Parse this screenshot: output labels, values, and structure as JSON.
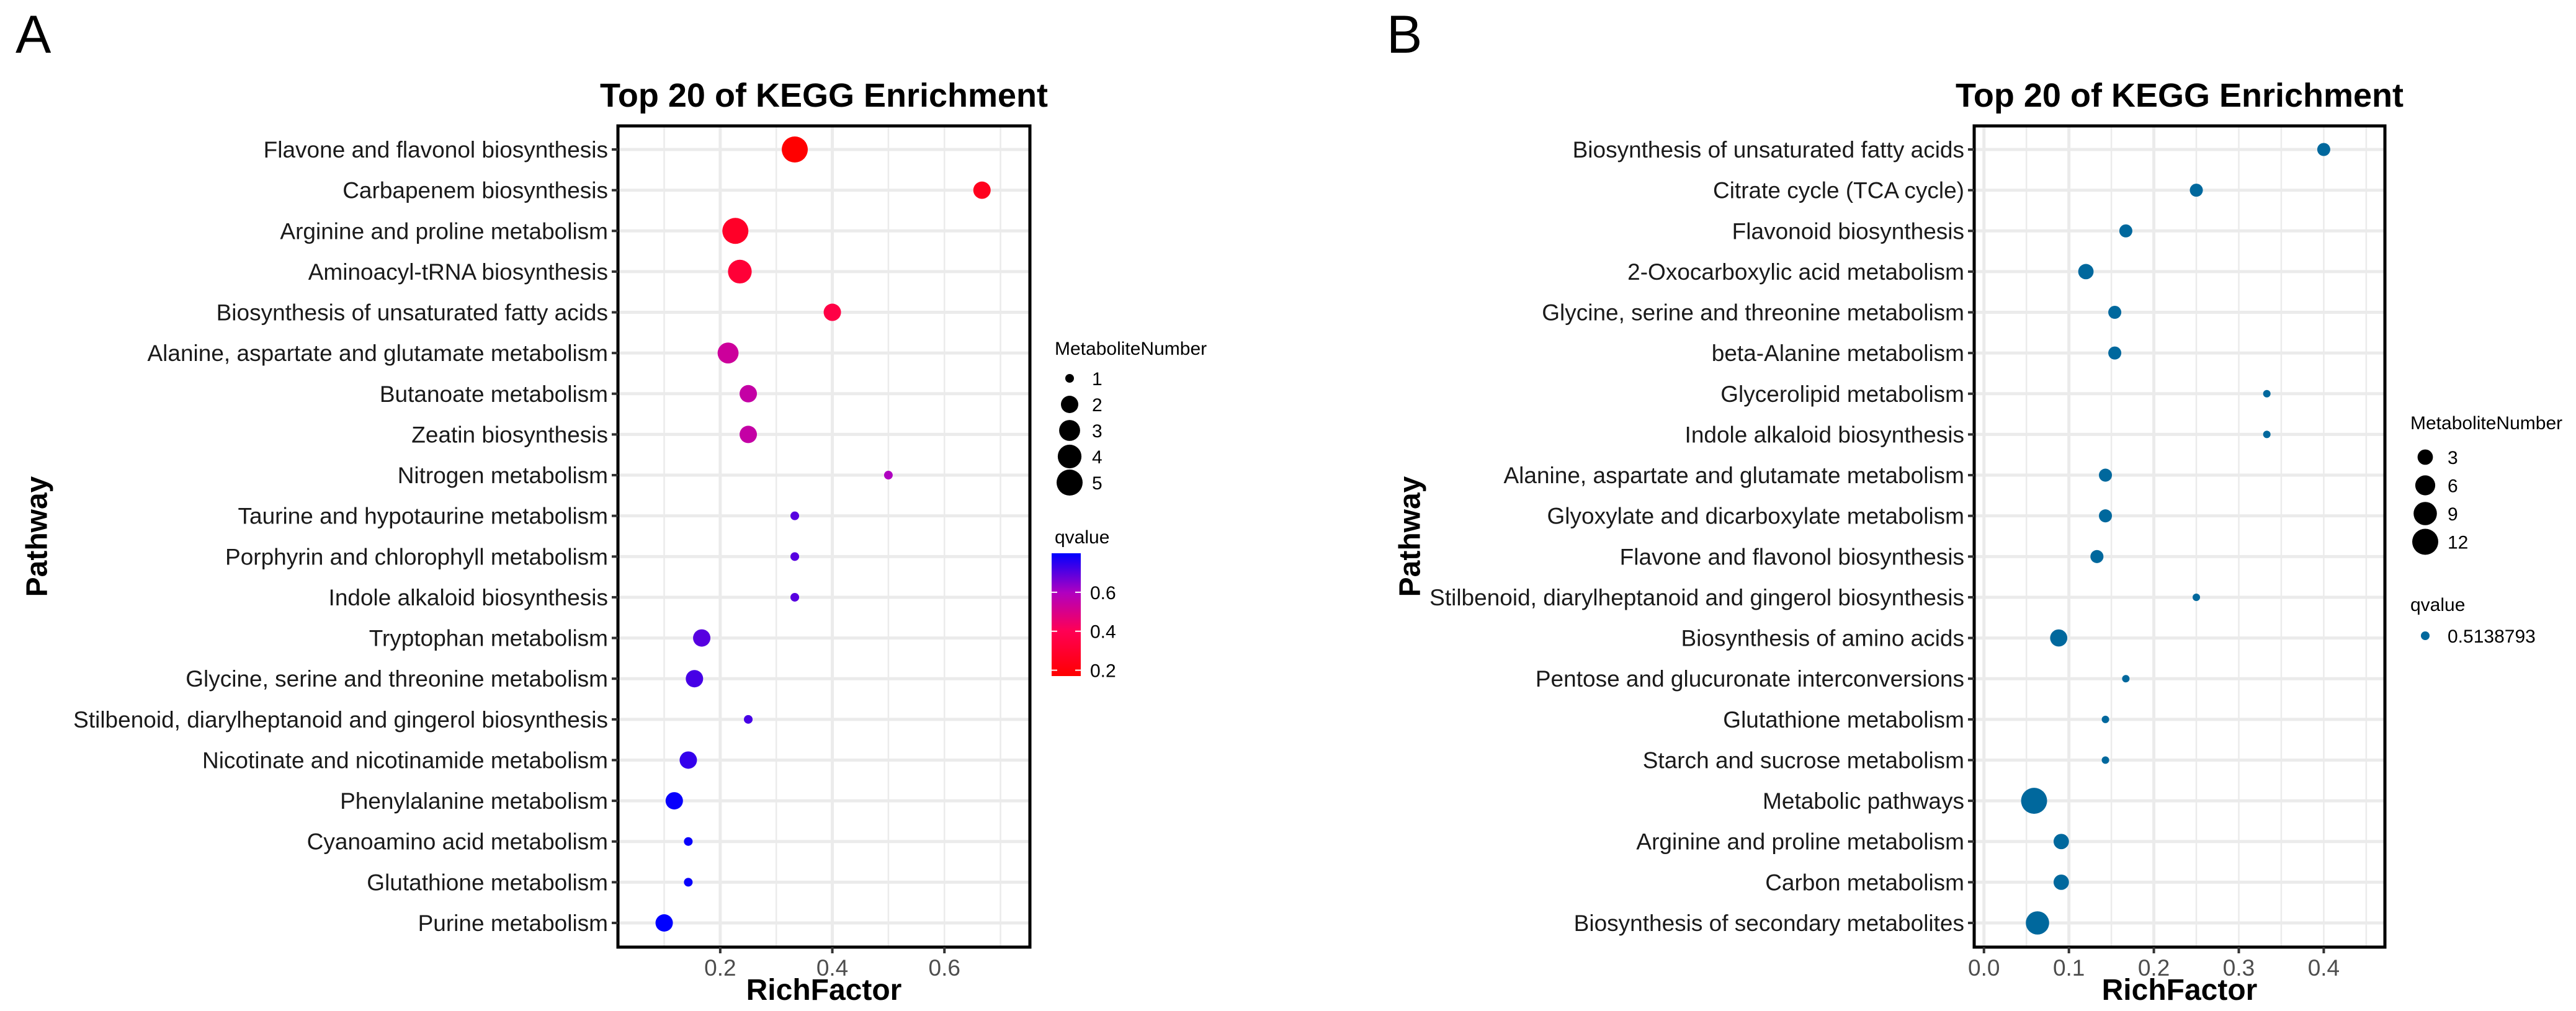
{
  "chart_data": [
    {
      "panel_label": "A",
      "type": "scatter",
      "title": "Top 20 of KEGG Enrichment",
      "xlabel": "RichFactor",
      "ylabel": "Pathway",
      "xlim": [
        0.0175,
        0.7525
      ],
      "xticks": [
        0.2,
        0.4,
        0.6
      ],
      "grid": true,
      "size_legend": {
        "title": "MetaboliteNumber",
        "entries": [
          1,
          2,
          3,
          4,
          5
        ]
      },
      "color_legend": {
        "title": "qvalue",
        "type": "gradient",
        "range": [
          0.17,
          0.8
        ],
        "ticks": [
          0.2,
          0.4,
          0.6
        ],
        "low_color": "#FF0000",
        "high_color": "#0000FF"
      },
      "legend_position": "right",
      "points": [
        {
          "pathway": "Flavone and flavonol biosynthesis",
          "richfactor": 0.333,
          "number": 5,
          "qvalue": 0.17
        },
        {
          "pathway": "Carbapenem biosynthesis",
          "richfactor": 0.667,
          "number": 2,
          "qvalue": 0.25
        },
        {
          "pathway": "Arginine and proline metabolism",
          "richfactor": 0.227,
          "number": 5,
          "qvalue": 0.28
        },
        {
          "pathway": "Aminoacyl-tRNA biosynthesis",
          "richfactor": 0.235,
          "number": 4,
          "qvalue": 0.32
        },
        {
          "pathway": "Biosynthesis of unsaturated fatty acids",
          "richfactor": 0.4,
          "number": 2,
          "qvalue": 0.36
        },
        {
          "pathway": "Alanine, aspartate and glutamate metabolism",
          "richfactor": 0.214,
          "number": 3,
          "qvalue": 0.53
        },
        {
          "pathway": "Butanoate metabolism",
          "richfactor": 0.25,
          "number": 2,
          "qvalue": 0.55
        },
        {
          "pathway": "Zeatin biosynthesis",
          "richfactor": 0.25,
          "number": 2,
          "qvalue": 0.55
        },
        {
          "pathway": "Nitrogen metabolism",
          "richfactor": 0.5,
          "number": 1,
          "qvalue": 0.6
        },
        {
          "pathway": "Taurine and hypotaurine metabolism",
          "richfactor": 0.333,
          "number": 1,
          "qvalue": 0.7
        },
        {
          "pathway": "Porphyrin and chlorophyll metabolism",
          "richfactor": 0.333,
          "number": 1,
          "qvalue": 0.7
        },
        {
          "pathway": "Indole alkaloid biosynthesis",
          "richfactor": 0.333,
          "number": 1,
          "qvalue": 0.7
        },
        {
          "pathway": "Tryptophan metabolism",
          "richfactor": 0.167,
          "number": 2,
          "qvalue": 0.7
        },
        {
          "pathway": "Glycine, serine and threonine metabolism",
          "richfactor": 0.154,
          "number": 2,
          "qvalue": 0.72
        },
        {
          "pathway": "Stilbenoid, diarylheptanoid and gingerol biosynthesis",
          "richfactor": 0.25,
          "number": 1,
          "qvalue": 0.72
        },
        {
          "pathway": "Nicotinate and nicotinamide metabolism",
          "richfactor": 0.143,
          "number": 2,
          "qvalue": 0.74
        },
        {
          "pathway": "Phenylalanine metabolism",
          "richfactor": 0.118,
          "number": 2,
          "qvalue": 0.79
        },
        {
          "pathway": "Cyanoamino acid metabolism",
          "richfactor": 0.143,
          "number": 1,
          "qvalue": 0.79
        },
        {
          "pathway": "Glutathione metabolism",
          "richfactor": 0.143,
          "number": 1,
          "qvalue": 0.79
        },
        {
          "pathway": "Purine metabolism",
          "richfactor": 0.1,
          "number": 2,
          "qvalue": 0.8
        }
      ]
    },
    {
      "panel_label": "B",
      "type": "scatter",
      "title": "Top 20 of KEGG Enrichment",
      "xlabel": "RichFactor",
      "ylabel": "Pathway",
      "xlim": [
        -0.0115,
        0.472
      ],
      "xticks": [
        0.0,
        0.1,
        0.2,
        0.3,
        0.4
      ],
      "grid": true,
      "size_legend": {
        "title": "MetaboliteNumber",
        "entries": [
          3,
          6,
          9,
          12
        ]
      },
      "color_legend": {
        "title": "qvalue",
        "type": "discrete",
        "entries": [
          "0.5138793"
        ],
        "color": "#00689D"
      },
      "legend_position": "right",
      "points": [
        {
          "pathway": "Biosynthesis of unsaturated fatty acids",
          "richfactor": 0.4,
          "number": 2,
          "qvalue": 0.5138793
        },
        {
          "pathway": "Citrate cycle (TCA cycle)",
          "richfactor": 0.25,
          "number": 2,
          "qvalue": 0.5138793
        },
        {
          "pathway": "Flavonoid biosynthesis",
          "richfactor": 0.167,
          "number": 2,
          "qvalue": 0.5138793
        },
        {
          "pathway": "2-Oxocarboxylic acid metabolism",
          "richfactor": 0.12,
          "number": 3,
          "qvalue": 0.5138793
        },
        {
          "pathway": "Glycine, serine and threonine metabolism",
          "richfactor": 0.154,
          "number": 2,
          "qvalue": 0.5138793
        },
        {
          "pathway": "beta-Alanine metabolism",
          "richfactor": 0.154,
          "number": 2,
          "qvalue": 0.5138793
        },
        {
          "pathway": "Glycerolipid metabolism",
          "richfactor": 0.333,
          "number": 1,
          "qvalue": 0.5138793
        },
        {
          "pathway": "Indole alkaloid biosynthesis",
          "richfactor": 0.333,
          "number": 1,
          "qvalue": 0.5138793
        },
        {
          "pathway": "Alanine, aspartate and glutamate metabolism",
          "richfactor": 0.143,
          "number": 2,
          "qvalue": 0.5138793
        },
        {
          "pathway": "Glyoxylate and dicarboxylate metabolism",
          "richfactor": 0.143,
          "number": 2,
          "qvalue": 0.5138793
        },
        {
          "pathway": "Flavone and flavonol biosynthesis",
          "richfactor": 0.133,
          "number": 2,
          "qvalue": 0.5138793
        },
        {
          "pathway": "Stilbenoid, diarylheptanoid and gingerol biosynthesis",
          "richfactor": 0.25,
          "number": 1,
          "qvalue": 0.5138793
        },
        {
          "pathway": "Biosynthesis of amino acids",
          "richfactor": 0.088,
          "number": 4,
          "qvalue": 0.5138793
        },
        {
          "pathway": "Pentose and glucuronate interconversions",
          "richfactor": 0.167,
          "number": 1,
          "qvalue": 0.5138793
        },
        {
          "pathway": "Glutathione metabolism",
          "richfactor": 0.143,
          "number": 1,
          "qvalue": 0.5138793
        },
        {
          "pathway": "Starch and sucrose metabolism",
          "richfactor": 0.143,
          "number": 1,
          "qvalue": 0.5138793
        },
        {
          "pathway": "Metabolic pathways",
          "richfactor": 0.059,
          "number": 12,
          "qvalue": 0.5138793
        },
        {
          "pathway": "Arginine and proline metabolism",
          "richfactor": 0.091,
          "number": 3,
          "qvalue": 0.5138793
        },
        {
          "pathway": "Carbon metabolism",
          "richfactor": 0.091,
          "number": 3,
          "qvalue": 0.5138793
        },
        {
          "pathway": "Biosynthesis of secondary metabolites",
          "richfactor": 0.063,
          "number": 9,
          "qvalue": 0.5138793
        }
      ]
    }
  ]
}
